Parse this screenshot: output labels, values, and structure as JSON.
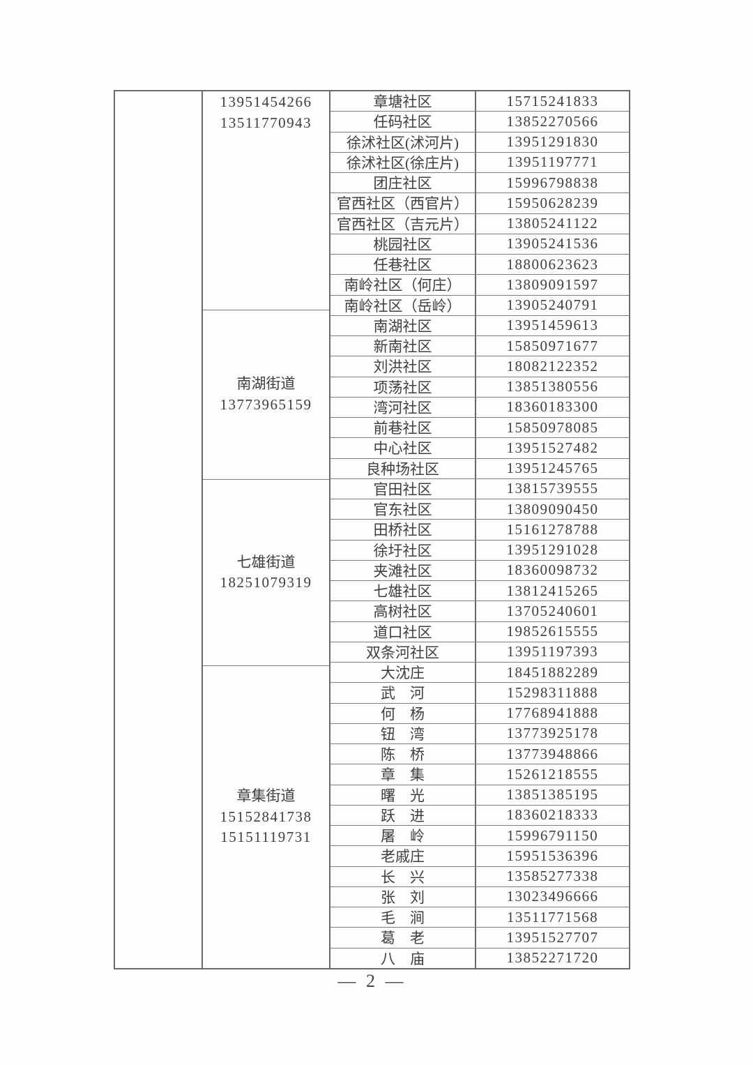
{
  "page": {
    "footer_label": "— 2 —"
  },
  "table": {
    "sections": [
      {
        "street_name": "",
        "street_phones": [
          "13951454266",
          "13511770943"
        ],
        "rows": [
          {
            "name": "章塘社区",
            "phone": "15715241833"
          },
          {
            "name": "任码社区",
            "phone": "13852270566"
          },
          {
            "name": "徐沭社区(沭河片)",
            "phone": "13951291830"
          },
          {
            "name": "徐沭社区(徐庄片)",
            "phone": "13951197771"
          },
          {
            "name": "团庄社区",
            "phone": "15996798838"
          },
          {
            "name": "官西社区（西官片）",
            "phone": "15950628239"
          },
          {
            "name": "官西社区（吉元片）",
            "phone": "13805241122"
          },
          {
            "name": "桃园社区",
            "phone": "13905241536"
          },
          {
            "name": "任巷社区",
            "phone": "18800623623"
          },
          {
            "name": "南岭社区（何庄）",
            "phone": "13809091597"
          },
          {
            "name": "南岭社区（岳岭）",
            "phone": "13905240791"
          }
        ]
      },
      {
        "street_name": "南湖街道",
        "street_phones": [
          "13773965159"
        ],
        "rows": [
          {
            "name": "南湖社区",
            "phone": "13951459613"
          },
          {
            "name": "新南社区",
            "phone": "15850971677"
          },
          {
            "name": "刘洪社区",
            "phone": "18082122352"
          },
          {
            "name": "项荡社区",
            "phone": "13851380556"
          },
          {
            "name": "湾河社区",
            "phone": "18360183300"
          },
          {
            "name": "前巷社区",
            "phone": "15850978085"
          },
          {
            "name": "中心社区",
            "phone": "13951527482"
          },
          {
            "name": "良种场社区",
            "phone": "13951245765"
          }
        ]
      },
      {
        "street_name": "七雄街道",
        "street_phones": [
          "18251079319"
        ],
        "rows": [
          {
            "name": "官田社区",
            "phone": "13815739555"
          },
          {
            "name": "官东社区",
            "phone": "13809090450"
          },
          {
            "name": "田桥社区",
            "phone": "15161278788"
          },
          {
            "name": "徐圩社区",
            "phone": "13951291028"
          },
          {
            "name": "夹滩社区",
            "phone": "18360098732"
          },
          {
            "name": "七雄社区",
            "phone": "13812415265"
          },
          {
            "name": "高树社区",
            "phone": "13705240601"
          },
          {
            "name": "道口社区",
            "phone": "19852615555"
          },
          {
            "name": "双条河社区",
            "phone": "13951197393"
          }
        ]
      },
      {
        "street_name": "章集街道",
        "street_phones": [
          "15152841738",
          "15151119731"
        ],
        "rows": [
          {
            "name": "大沈庄",
            "phone": "18451882289"
          },
          {
            "name": "武　河",
            "phone": "15298311888"
          },
          {
            "name": "何　杨",
            "phone": "17768941888"
          },
          {
            "name": "钮　湾",
            "phone": "13773925178"
          },
          {
            "name": "陈　桥",
            "phone": "13773948866"
          },
          {
            "name": "章　集",
            "phone": "15261218555"
          },
          {
            "name": "曙　光",
            "phone": "13851385195"
          },
          {
            "name": "跃　进",
            "phone": "18360218333"
          },
          {
            "name": "屠　岭",
            "phone": "15996791150"
          },
          {
            "name": "老戚庄",
            "phone": "15951536396"
          },
          {
            "name": "长　兴",
            "phone": "13585277338"
          },
          {
            "name": "张　刘",
            "phone": "13023496666"
          },
          {
            "name": "毛　涧",
            "phone": "13511771568"
          },
          {
            "name": "葛　老",
            "phone": "13951527707"
          },
          {
            "name": "八　庙",
            "phone": "13852271720"
          }
        ]
      }
    ]
  }
}
